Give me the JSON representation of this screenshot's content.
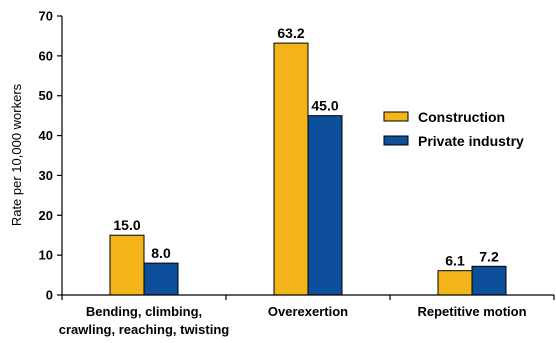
{
  "chart_data": {
    "type": "bar",
    "categories": [
      [
        "Bending, climbing,",
        "crawling, reaching, twisting"
      ],
      [
        "Overexertion"
      ],
      [
        "Repetitive motion"
      ]
    ],
    "series": [
      {
        "name": "Construction",
        "values": [
          15.0,
          63.2,
          6.1
        ],
        "labels": [
          "15.0",
          "63.2",
          "6.1"
        ],
        "color": "#F2B418"
      },
      {
        "name": "Private industry",
        "values": [
          8.0,
          45.0,
          7.2
        ],
        "labels": [
          "8.0",
          "45.0",
          "7.2"
        ],
        "color": "#0E4F9B"
      }
    ],
    "ylabel": "Rate per 10,000 workers",
    "ylim": [
      0,
      70
    ],
    "yticks": [
      "0",
      "10",
      "20",
      "30",
      "40",
      "50",
      "60",
      "70"
    ],
    "grid": false,
    "legend_position": "right",
    "border_color": "#000000"
  }
}
